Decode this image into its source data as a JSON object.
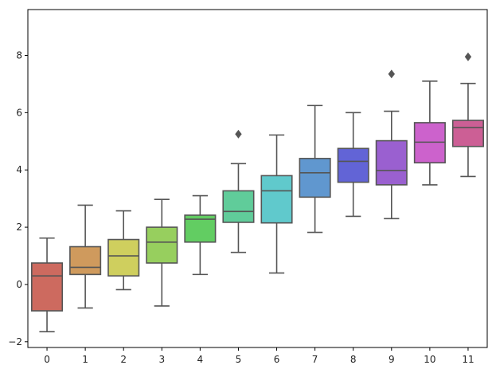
{
  "chart_data": {
    "type": "boxplot",
    "title": "",
    "xlabel": "",
    "ylabel": "",
    "grid": false,
    "ylim": [
      -2.2,
      9.6
    ],
    "yticks": [
      -2,
      0,
      2,
      4,
      6,
      8
    ],
    "categories": [
      "0",
      "1",
      "2",
      "3",
      "4",
      "5",
      "6",
      "7",
      "8",
      "9",
      "10",
      "11"
    ],
    "series": [
      {
        "name": "0",
        "color": "#cd6a5f",
        "whisker_low": -1.65,
        "q1": -0.92,
        "median": 0.3,
        "q3": 0.75,
        "whisker_high": 1.62,
        "outliers": []
      },
      {
        "name": "1",
        "color": "#cf9a5d",
        "whisker_low": -0.82,
        "q1": 0.35,
        "median": 0.6,
        "q3": 1.32,
        "whisker_high": 2.77,
        "outliers": []
      },
      {
        "name": "2",
        "color": "#cfcf5e",
        "whisker_low": -0.18,
        "q1": 0.3,
        "median": 1.0,
        "q3": 1.57,
        "whisker_high": 2.57,
        "outliers": []
      },
      {
        "name": "3",
        "color": "#97cf5e",
        "whisker_low": -0.75,
        "q1": 0.75,
        "median": 1.48,
        "q3": 2.0,
        "whisker_high": 2.97,
        "outliers": []
      },
      {
        "name": "4",
        "color": "#62cd62",
        "whisker_low": 0.35,
        "q1": 1.48,
        "median": 2.28,
        "q3": 2.42,
        "whisker_high": 3.1,
        "outliers": []
      },
      {
        "name": "5",
        "color": "#60cc9a",
        "whisker_low": 1.12,
        "q1": 2.17,
        "median": 2.55,
        "q3": 3.27,
        "whisker_high": 4.22,
        "outliers": [
          5.25
        ]
      },
      {
        "name": "6",
        "color": "#60c9cc",
        "whisker_low": 0.4,
        "q1": 2.15,
        "median": 3.27,
        "q3": 3.8,
        "whisker_high": 5.22,
        "outliers": []
      },
      {
        "name": "7",
        "color": "#6097cf",
        "whisker_low": 1.82,
        "q1": 3.05,
        "median": 3.9,
        "q3": 4.4,
        "whisker_high": 6.25,
        "outliers": []
      },
      {
        "name": "8",
        "color": "#6264d6",
        "whisker_low": 2.38,
        "q1": 3.57,
        "median": 4.3,
        "q3": 4.75,
        "whisker_high": 6.0,
        "outliers": []
      },
      {
        "name": "9",
        "color": "#9a60d0",
        "whisker_low": 2.3,
        "q1": 3.48,
        "median": 3.98,
        "q3": 5.02,
        "whisker_high": 6.05,
        "outliers": [
          7.35
        ]
      },
      {
        "name": "10",
        "color": "#cc62cc",
        "whisker_low": 3.48,
        "q1": 4.25,
        "median": 4.97,
        "q3": 5.65,
        "whisker_high": 7.1,
        "outliers": []
      },
      {
        "name": "11",
        "color": "#cc5f95",
        "whisker_low": 3.77,
        "q1": 4.82,
        "median": 5.48,
        "q3": 5.73,
        "whisker_high": 7.02,
        "outliers": [
          7.95
        ]
      }
    ]
  }
}
